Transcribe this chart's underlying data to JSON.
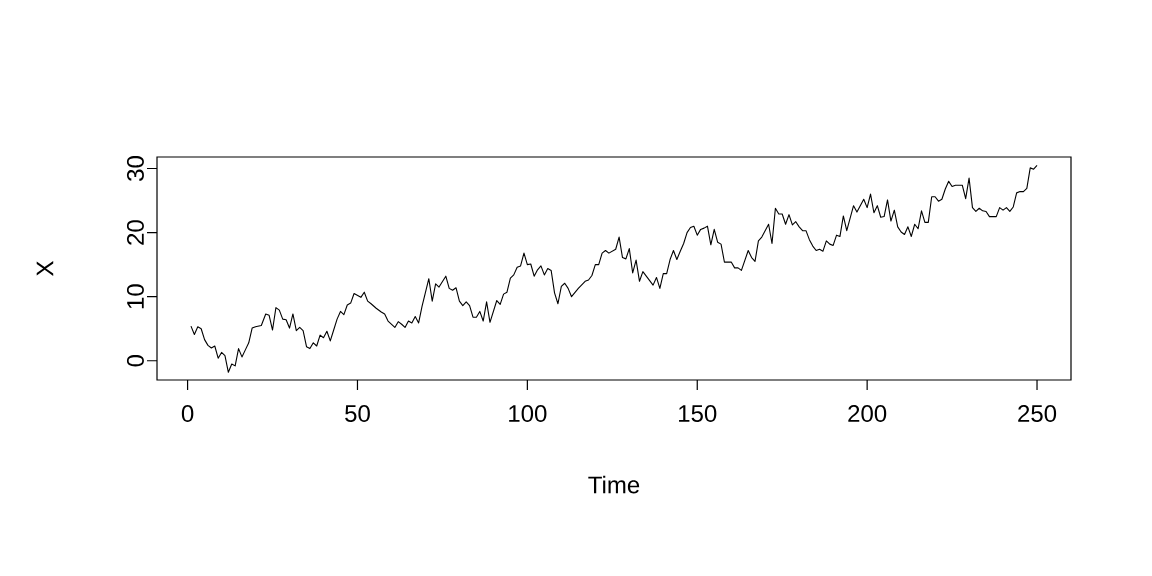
{
  "chart_data": {
    "type": "line",
    "xlabel": "Time",
    "ylabel": "X",
    "xlim": [
      -9,
      260
    ],
    "ylim": [
      -3,
      31.8
    ],
    "xticks": [
      0,
      50,
      100,
      150,
      200,
      250
    ],
    "yticks": [
      0,
      10,
      20,
      30
    ],
    "marker": "none",
    "line_style": "solid",
    "series": [
      {
        "color": "#000000",
        "x": [
          1,
          2,
          3,
          4,
          5,
          6,
          7,
          8,
          9,
          10,
          11,
          12,
          13,
          14,
          15,
          16,
          17,
          18,
          19,
          20,
          21.7,
          23,
          24,
          25,
          26,
          27,
          28,
          29,
          30,
          31,
          32,
          33,
          34,
          35,
          36,
          37,
          38,
          39,
          40,
          41,
          42,
          43,
          44,
          45,
          46,
          47,
          48,
          49,
          51,
          52,
          53,
          54,
          55.5,
          57,
          58,
          59,
          61,
          62,
          63,
          64,
          65,
          66,
          67,
          68,
          69,
          71,
          72,
          73,
          74,
          76,
          77,
          78,
          79,
          80,
          81,
          82,
          83,
          84,
          85,
          86,
          87,
          88,
          89,
          91,
          92,
          93,
          94,
          95,
          96,
          97,
          98,
          99,
          100,
          101,
          102,
          103,
          104,
          105,
          106,
          107,
          108,
          109,
          110,
          111,
          112,
          113,
          115,
          117,
          118,
          119,
          120,
          121,
          122,
          123,
          124,
          126,
          127,
          128,
          129,
          130,
          131,
          132,
          133,
          134,
          137,
          138,
          139,
          140,
          141,
          142,
          143,
          144,
          145,
          146,
          147,
          148,
          149,
          150,
          151,
          152,
          153,
          154,
          155,
          156,
          157,
          158,
          160,
          161,
          162,
          163,
          165,
          166,
          167,
          168,
          169,
          171,
          172,
          173,
          174,
          175,
          176,
          177,
          178,
          179,
          180,
          181,
          182,
          183,
          184,
          185,
          186,
          187,
          188,
          189,
          190,
          191,
          192,
          193,
          194,
          196,
          197,
          199,
          200,
          201,
          202,
          203,
          204,
          205,
          206,
          207,
          208,
          209,
          210,
          211,
          212,
          213,
          214,
          215,
          216,
          217,
          218,
          219,
          220,
          221,
          222,
          223,
          224,
          225,
          226,
          228,
          229,
          230,
          231,
          232,
          233,
          234,
          235,
          236,
          238,
          239,
          240,
          241,
          242,
          243,
          244,
          245,
          246,
          247,
          248,
          249,
          250
        ],
        "values": [
          5.4,
          4.1,
          5.3,
          5.0,
          3.3,
          2.4,
          2.0,
          2.3,
          0.4,
          1.3,
          0.8,
          -1.8,
          -0.5,
          -0.8,
          1.9,
          0.6,
          1.7,
          2.8,
          5.1,
          5.3,
          5.5,
          7.3,
          7.1,
          4.8,
          8.3,
          7.9,
          6.5,
          6.4,
          5.1,
          7.3,
          4.7,
          5.2,
          4.7,
          2.2,
          1.9,
          2.8,
          2.3,
          4.0,
          3.6,
          4.6,
          3.1,
          4.8,
          6.5,
          7.7,
          7.2,
          8.7,
          9.0,
          10.5,
          9.9,
          10.7,
          9.3,
          8.9,
          8.2,
          7.6,
          7.3,
          6.2,
          5.2,
          6.1,
          5.7,
          5.2,
          6.2,
          5.9,
          6.9,
          5.9,
          8.5,
          12.8,
          9.3,
          12.0,
          11.5,
          13.2,
          11.3,
          11.0,
          11.4,
          9.3,
          8.6,
          9.2,
          8.6,
          6.8,
          6.8,
          7.7,
          6.2,
          9.2,
          6.0,
          9.4,
          8.8,
          10.4,
          10.7,
          12.9,
          13.4,
          14.6,
          14.8,
          16.8,
          15.0,
          15.1,
          13.2,
          14.2,
          14.8,
          13.4,
          14.4,
          14.1,
          10.6,
          8.9,
          11.6,
          12.1,
          11.3,
          10.0,
          11.3,
          12.4,
          12.6,
          13.3,
          15.0,
          15.0,
          16.8,
          17.2,
          16.8,
          17.4,
          19.3,
          16.1,
          15.9,
          17.5,
          13.7,
          15.7,
          12.4,
          13.9,
          11.8,
          13.0,
          11.3,
          13.6,
          13.6,
          15.8,
          17.2,
          15.8,
          17.1,
          18.3,
          20.0,
          20.8,
          21.0,
          19.6,
          20.5,
          20.7,
          21.0,
          18.1,
          20.5,
          18.5,
          18.2,
          15.4,
          15.4,
          14.5,
          14.5,
          14.1,
          17.2,
          16.1,
          15.5,
          18.7,
          19.3,
          21.3,
          18.3,
          23.8,
          22.9,
          22.9,
          21.3,
          22.8,
          21.2,
          21.7,
          20.9,
          20.3,
          20.3,
          18.9,
          17.9,
          17.2,
          17.4,
          17.1,
          18.7,
          18.2,
          18.0,
          19.6,
          19.4,
          22.6,
          20.3,
          24.2,
          23.2,
          25.2,
          23.9,
          26.0,
          23.1,
          24.2,
          22.4,
          22.5,
          25.1,
          21.8,
          23.5,
          20.9,
          20.1,
          19.7,
          20.9,
          19.4,
          21.3,
          20.6,
          23.4,
          21.6,
          21.6,
          25.6,
          25.6,
          24.9,
          25.2,
          26.8,
          28.0,
          27.2,
          27.4,
          27.4,
          25.3,
          28.5,
          23.9,
          23.3,
          23.8,
          23.4,
          23.3,
          22.5,
          22.5,
          23.9,
          23.5,
          23.9,
          23.3,
          24.0,
          26.2,
          26.4,
          26.4,
          26.9,
          30.1,
          29.9,
          30.5
        ]
      }
    ]
  }
}
